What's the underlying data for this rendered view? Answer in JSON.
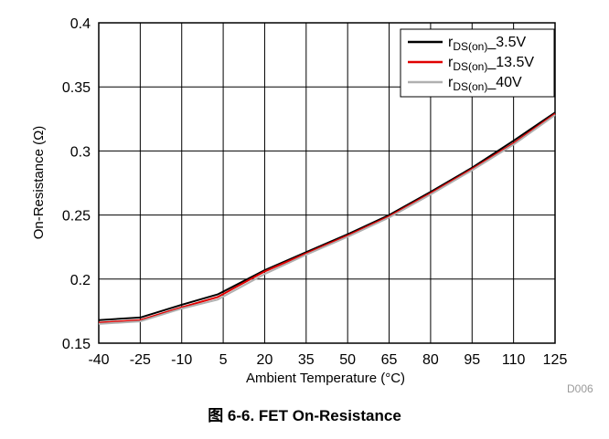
{
  "chart_data": {
    "type": "line",
    "xlabel": "Ambient Temperature (°C)",
    "ylabel": "On-Resistance (Ω)",
    "xlim": [
      -40,
      125
    ],
    "ylim": [
      0.15,
      0.4
    ],
    "xticks": [
      -40,
      -25,
      -10,
      5,
      20,
      35,
      50,
      65,
      80,
      95,
      110,
      125
    ],
    "xtick_labels": [
      "-40",
      "-25",
      "-10",
      "5",
      "20",
      "35",
      "50",
      "65",
      "80",
      "95",
      "110",
      "125"
    ],
    "yticks": [
      0.15,
      0.2,
      0.25,
      0.3,
      0.35,
      0.4
    ],
    "ytick_labels": [
      "0.15",
      "0.2",
      "0.25",
      "0.3",
      "0.35",
      "0.4"
    ],
    "grid": true,
    "legend_position": "top-right",
    "series": [
      {
        "name_main": "r",
        "name_sub": "DS(on)",
        "name_suffix": "_3.5V",
        "color": "#000000",
        "x": [
          -40,
          -25,
          -10,
          3,
          20,
          35,
          50,
          65,
          80,
          95,
          110,
          125
        ],
        "y": [
          0.168,
          0.17,
          0.18,
          0.188,
          0.207,
          0.221,
          0.235,
          0.25,
          0.268,
          0.287,
          0.308,
          0.33
        ]
      },
      {
        "name_main": "r",
        "name_sub": "DS(on)",
        "name_suffix": "_13.5V",
        "color": "#e00000",
        "x": [
          -40,
          -25,
          -10,
          3,
          20,
          35,
          50,
          65,
          80,
          95,
          110,
          125
        ],
        "y": [
          0.166,
          0.168,
          0.178,
          0.186,
          0.206,
          0.22,
          0.234,
          0.249,
          0.267,
          0.286,
          0.306,
          0.329
        ]
      },
      {
        "name_main": "r",
        "name_sub": "DS(on)",
        "name_suffix": "_40V",
        "color": "#b0b0b0",
        "x": [
          -40,
          -25,
          -10,
          3,
          20,
          35,
          50,
          65,
          80,
          95,
          110,
          125
        ],
        "y": [
          0.165,
          0.167,
          0.177,
          0.184,
          0.204,
          0.219,
          0.233,
          0.248,
          0.266,
          0.285,
          0.305,
          0.328
        ]
      }
    ]
  },
  "figure": {
    "code": "D006",
    "caption": "图 6-6. FET On-Resistance"
  }
}
